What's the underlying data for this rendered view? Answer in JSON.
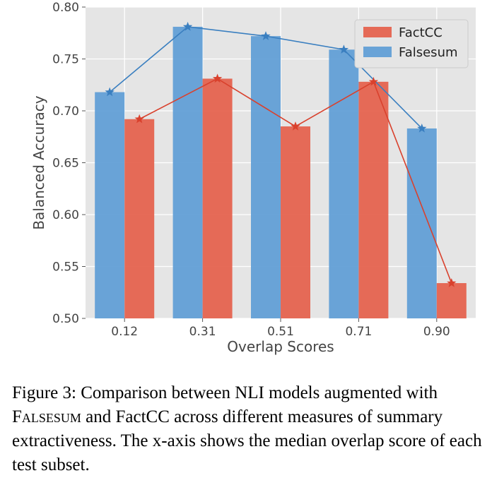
{
  "chart_data": {
    "type": "bar",
    "categories": [
      "0.12",
      "0.31",
      "0.51",
      "0.71",
      "0.90"
    ],
    "series": [
      {
        "name": "Falsesum",
        "values": [
          0.718,
          0.781,
          0.772,
          0.759,
          0.683
        ],
        "color": "#5b9bd5"
      },
      {
        "name": "FactCC",
        "values": [
          0.692,
          0.731,
          0.685,
          0.728,
          0.534
        ],
        "color": "#e45c47"
      }
    ],
    "line_overlay": true,
    "marker": "star",
    "xlabel": "Overlap Scores",
    "ylabel": "Balanced Accuracy",
    "ylim": [
      0.5,
      0.8
    ],
    "yticks": [
      "0.50",
      "0.55",
      "0.60",
      "0.65",
      "0.70",
      "0.75",
      "0.80"
    ],
    "grid": true,
    "background": "#e5e5e5",
    "legend": {
      "position": "top-right",
      "entries": [
        "FactCC",
        "Falsesum"
      ]
    }
  },
  "caption": {
    "prefix": "Figure 3: Comparison between NLI models augmented with ",
    "highlight": "Falsesum",
    "suffix": " and FactCC across different measures of summary extractiveness. The x-axis shows the median overlap score of each test subset."
  }
}
